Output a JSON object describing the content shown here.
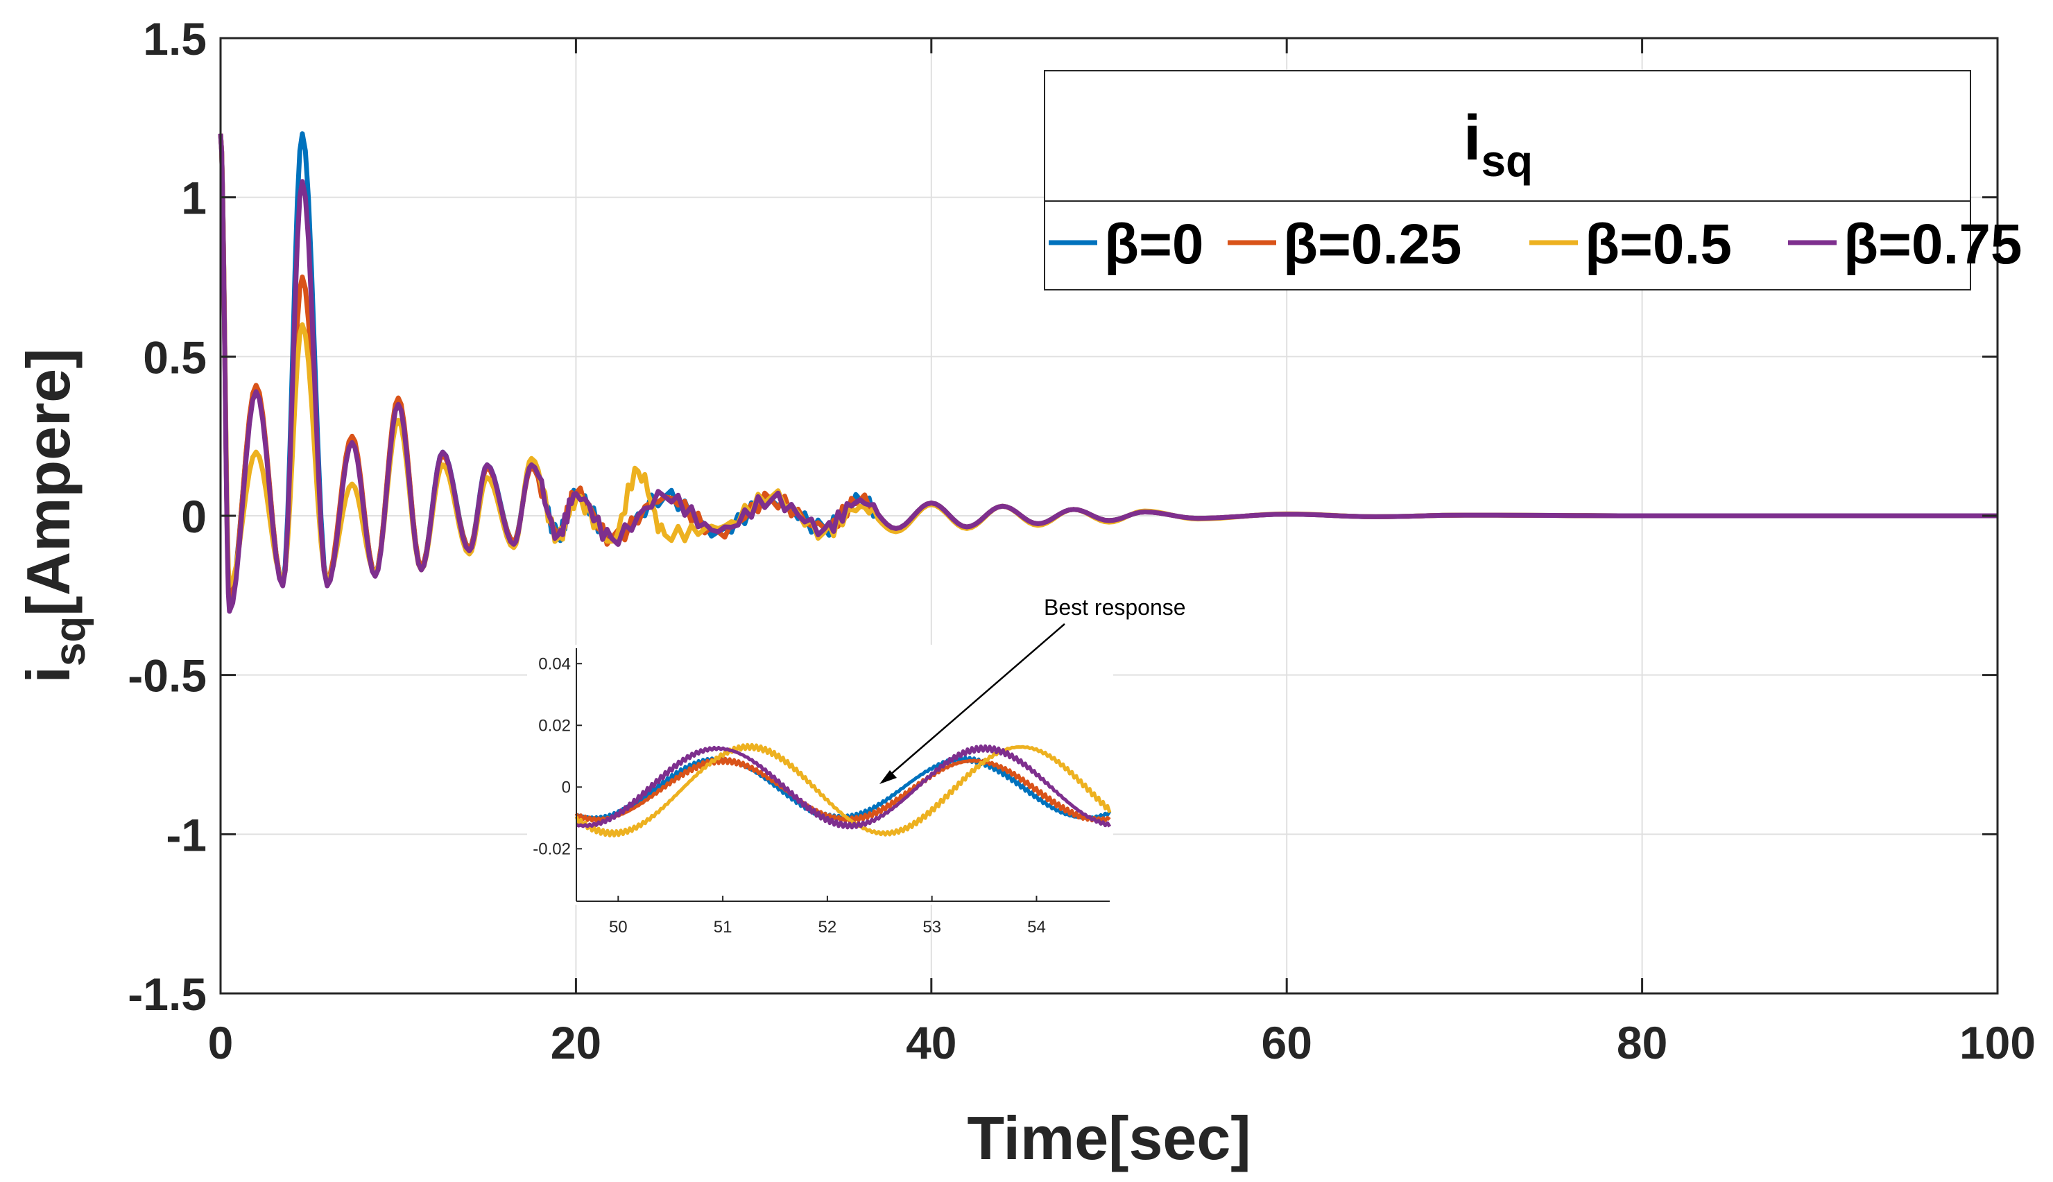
{
  "chart_data": {
    "type": "line",
    "title": "",
    "xlabel": "Time[sec]",
    "ylabel_main": "i",
    "ylabel_sub": "sq",
    "ylabel_suffix": "[Ampere]",
    "xlim": [
      0,
      100
    ],
    "ylim": [
      -1.5,
      1.5
    ],
    "xticks": [
      0,
      20,
      40,
      60,
      80,
      100
    ],
    "yticks": [
      -1.5,
      -1,
      -0.5,
      0,
      0.5,
      1,
      1.5
    ],
    "xtick_labels": [
      "0",
      "20",
      "40",
      "60",
      "80",
      "100"
    ],
    "ytick_labels": [
      "-1.5",
      "-1",
      "-0.5",
      "0",
      "0.5",
      "1",
      "1.5"
    ],
    "grid": true,
    "legend": {
      "title_main": "i",
      "title_sub": "sq",
      "placement": "top-right",
      "entries": [
        "β=0",
        "β=0.25",
        "β=0.5",
        "β=0.75"
      ]
    },
    "series": [
      {
        "name": "β=0",
        "color": "#0072BD",
        "values": [
          [
            0,
            1.2
          ],
          [
            0.5,
            -0.26
          ],
          [
            2,
            0.4
          ],
          [
            3.5,
            -0.21
          ],
          [
            4.6,
            1.2
          ],
          [
            6,
            -0.21
          ],
          [
            7.4,
            0.24
          ],
          [
            8.7,
            -0.18
          ],
          [
            10,
            0.36
          ],
          [
            11.3,
            -0.16
          ],
          [
            12.5,
            0.2
          ],
          [
            14,
            -0.1
          ],
          [
            15,
            0.16
          ],
          [
            16.5,
            -0.08
          ],
          [
            17.5,
            0.16
          ],
          [
            19,
            -0.06
          ],
          [
            20,
            0.07
          ],
          [
            22,
            -0.07
          ],
          [
            25,
            0.06
          ],
          [
            28,
            -0.05
          ],
          [
            31,
            0.05
          ],
          [
            34,
            -0.04
          ],
          [
            36,
            0.05
          ],
          [
            38,
            -0.04
          ],
          [
            40,
            0.04
          ],
          [
            42,
            -0.035
          ],
          [
            44,
            0.03
          ],
          [
            46,
            -0.025
          ],
          [
            48,
            0.02
          ],
          [
            50,
            -0.015
          ],
          [
            52,
            0.012
          ],
          [
            55,
            -0.008
          ],
          [
            60,
            0.005
          ],
          [
            65,
            -0.003
          ],
          [
            70,
            0.002
          ],
          [
            80,
            0
          ],
          [
            100,
            0
          ]
        ]
      },
      {
        "name": "β=0.25",
        "color": "#D95319",
        "values": [
          [
            0,
            1.2
          ],
          [
            0.5,
            -0.27
          ],
          [
            2,
            0.41
          ],
          [
            3.5,
            -0.21
          ],
          [
            4.6,
            0.75
          ],
          [
            6,
            -0.2
          ],
          [
            7.4,
            0.25
          ],
          [
            8.7,
            -0.18
          ],
          [
            10,
            0.37
          ],
          [
            11.3,
            -0.16
          ],
          [
            12.5,
            0.19
          ],
          [
            14,
            -0.1
          ],
          [
            15,
            0.15
          ],
          [
            16.5,
            -0.08
          ],
          [
            17.5,
            0.15
          ],
          [
            19,
            -0.06
          ],
          [
            20,
            0.07
          ],
          [
            22,
            -0.07
          ],
          [
            25,
            0.06
          ],
          [
            28,
            -0.05
          ],
          [
            31,
            0.05
          ],
          [
            34,
            -0.04
          ],
          [
            36,
            0.05
          ],
          [
            38,
            -0.04
          ],
          [
            40,
            0.04
          ],
          [
            42,
            -0.035
          ],
          [
            44,
            0.03
          ],
          [
            46,
            -0.025
          ],
          [
            48,
            0.02
          ],
          [
            50,
            -0.015
          ],
          [
            52,
            0.012
          ],
          [
            55,
            -0.008
          ],
          [
            60,
            0.005
          ],
          [
            65,
            -0.003
          ],
          [
            70,
            0.002
          ],
          [
            80,
            0
          ],
          [
            100,
            0
          ]
        ]
      },
      {
        "name": "β=0.5",
        "color": "#EDB120",
        "values": [
          [
            0,
            1.2
          ],
          [
            0.5,
            -0.22
          ],
          [
            2,
            0.2
          ],
          [
            3.5,
            -0.2
          ],
          [
            4.6,
            0.6
          ],
          [
            6,
            -0.2
          ],
          [
            7.4,
            0.1
          ],
          [
            8.7,
            -0.18
          ],
          [
            10,
            0.3
          ],
          [
            11.3,
            -0.17
          ],
          [
            12.5,
            0.16
          ],
          [
            14,
            -0.12
          ],
          [
            15,
            0.12
          ],
          [
            16.5,
            -0.1
          ],
          [
            17.5,
            0.18
          ],
          [
            19,
            -0.07
          ],
          [
            20,
            0.05
          ],
          [
            22,
            -0.08
          ],
          [
            23.5,
            0.14
          ],
          [
            25,
            -0.06
          ],
          [
            28,
            -0.04
          ],
          [
            31,
            0.06
          ],
          [
            34,
            -0.05
          ],
          [
            36,
            0.03
          ],
          [
            38,
            -0.05
          ],
          [
            40,
            0.035
          ],
          [
            42,
            -0.04
          ],
          [
            44,
            0.03
          ],
          [
            46,
            -0.03
          ],
          [
            48,
            0.02
          ],
          [
            50,
            -0.02
          ],
          [
            52,
            0.015
          ],
          [
            55,
            -0.01
          ],
          [
            60,
            0.006
          ],
          [
            65,
            -0.003
          ],
          [
            70,
            0.002
          ],
          [
            80,
            0
          ],
          [
            100,
            0
          ]
        ]
      },
      {
        "name": "β=0.75",
        "color": "#7E2F8E",
        "values": [
          [
            0,
            1.2
          ],
          [
            0.5,
            -0.3
          ],
          [
            2,
            0.39
          ],
          [
            3.5,
            -0.22
          ],
          [
            4.6,
            1.05
          ],
          [
            6,
            -0.22
          ],
          [
            7.4,
            0.23
          ],
          [
            8.7,
            -0.19
          ],
          [
            10,
            0.35
          ],
          [
            11.3,
            -0.17
          ],
          [
            12.5,
            0.2
          ],
          [
            14,
            -0.11
          ],
          [
            15,
            0.16
          ],
          [
            16.5,
            -0.09
          ],
          [
            17.5,
            0.16
          ],
          [
            19,
            -0.06
          ],
          [
            20,
            0.07
          ],
          [
            22,
            -0.07
          ],
          [
            25,
            0.06
          ],
          [
            28,
            -0.05
          ],
          [
            31,
            0.05
          ],
          [
            34,
            -0.04
          ],
          [
            36,
            0.05
          ],
          [
            38,
            -0.04
          ],
          [
            40,
            0.04
          ],
          [
            42,
            -0.035
          ],
          [
            44,
            0.03
          ],
          [
            46,
            -0.025
          ],
          [
            48,
            0.02
          ],
          [
            50,
            -0.015
          ],
          [
            52,
            0.012
          ],
          [
            55,
            -0.008
          ],
          [
            60,
            0.005
          ],
          [
            65,
            -0.003
          ],
          [
            70,
            0.002
          ],
          [
            80,
            0
          ],
          [
            100,
            0
          ]
        ]
      }
    ],
    "inset": {
      "xlim": [
        49.6,
        54.7
      ],
      "ylim": [
        -0.037,
        0.045
      ],
      "xticks": [
        50,
        51,
        52,
        53,
        54
      ],
      "yticks": [
        -0.02,
        0,
        0.02,
        0.04
      ],
      "xtick_labels": [
        "50",
        "51",
        "52",
        "53",
        "54"
      ],
      "ytick_labels": [
        "-0.02",
        "0",
        "0.02",
        "0.04"
      ],
      "annotation": {
        "text": "Best response",
        "arrow_to": [
          52.45,
          -0.001
        ]
      },
      "series": [
        {
          "name": "β=0",
          "color": "#0072BD",
          "amp": 0.0095,
          "phase_t": 50.95,
          "period": 2.35,
          "offset": -0.0005
        },
        {
          "name": "β=0.25",
          "color": "#D95319",
          "amp": 0.0095,
          "phase_t": 51.0,
          "period": 2.4,
          "offset": -0.001
        },
        {
          "name": "β=0.5",
          "color": "#EDB120",
          "amp": 0.014,
          "phase_t": 51.25,
          "period": 2.6,
          "offset": -0.001
        },
        {
          "name": "β=0.75",
          "color": "#7E2F8E",
          "amp": 0.0125,
          "phase_t": 50.95,
          "period": 2.55,
          "offset": 0.0
        }
      ]
    }
  }
}
